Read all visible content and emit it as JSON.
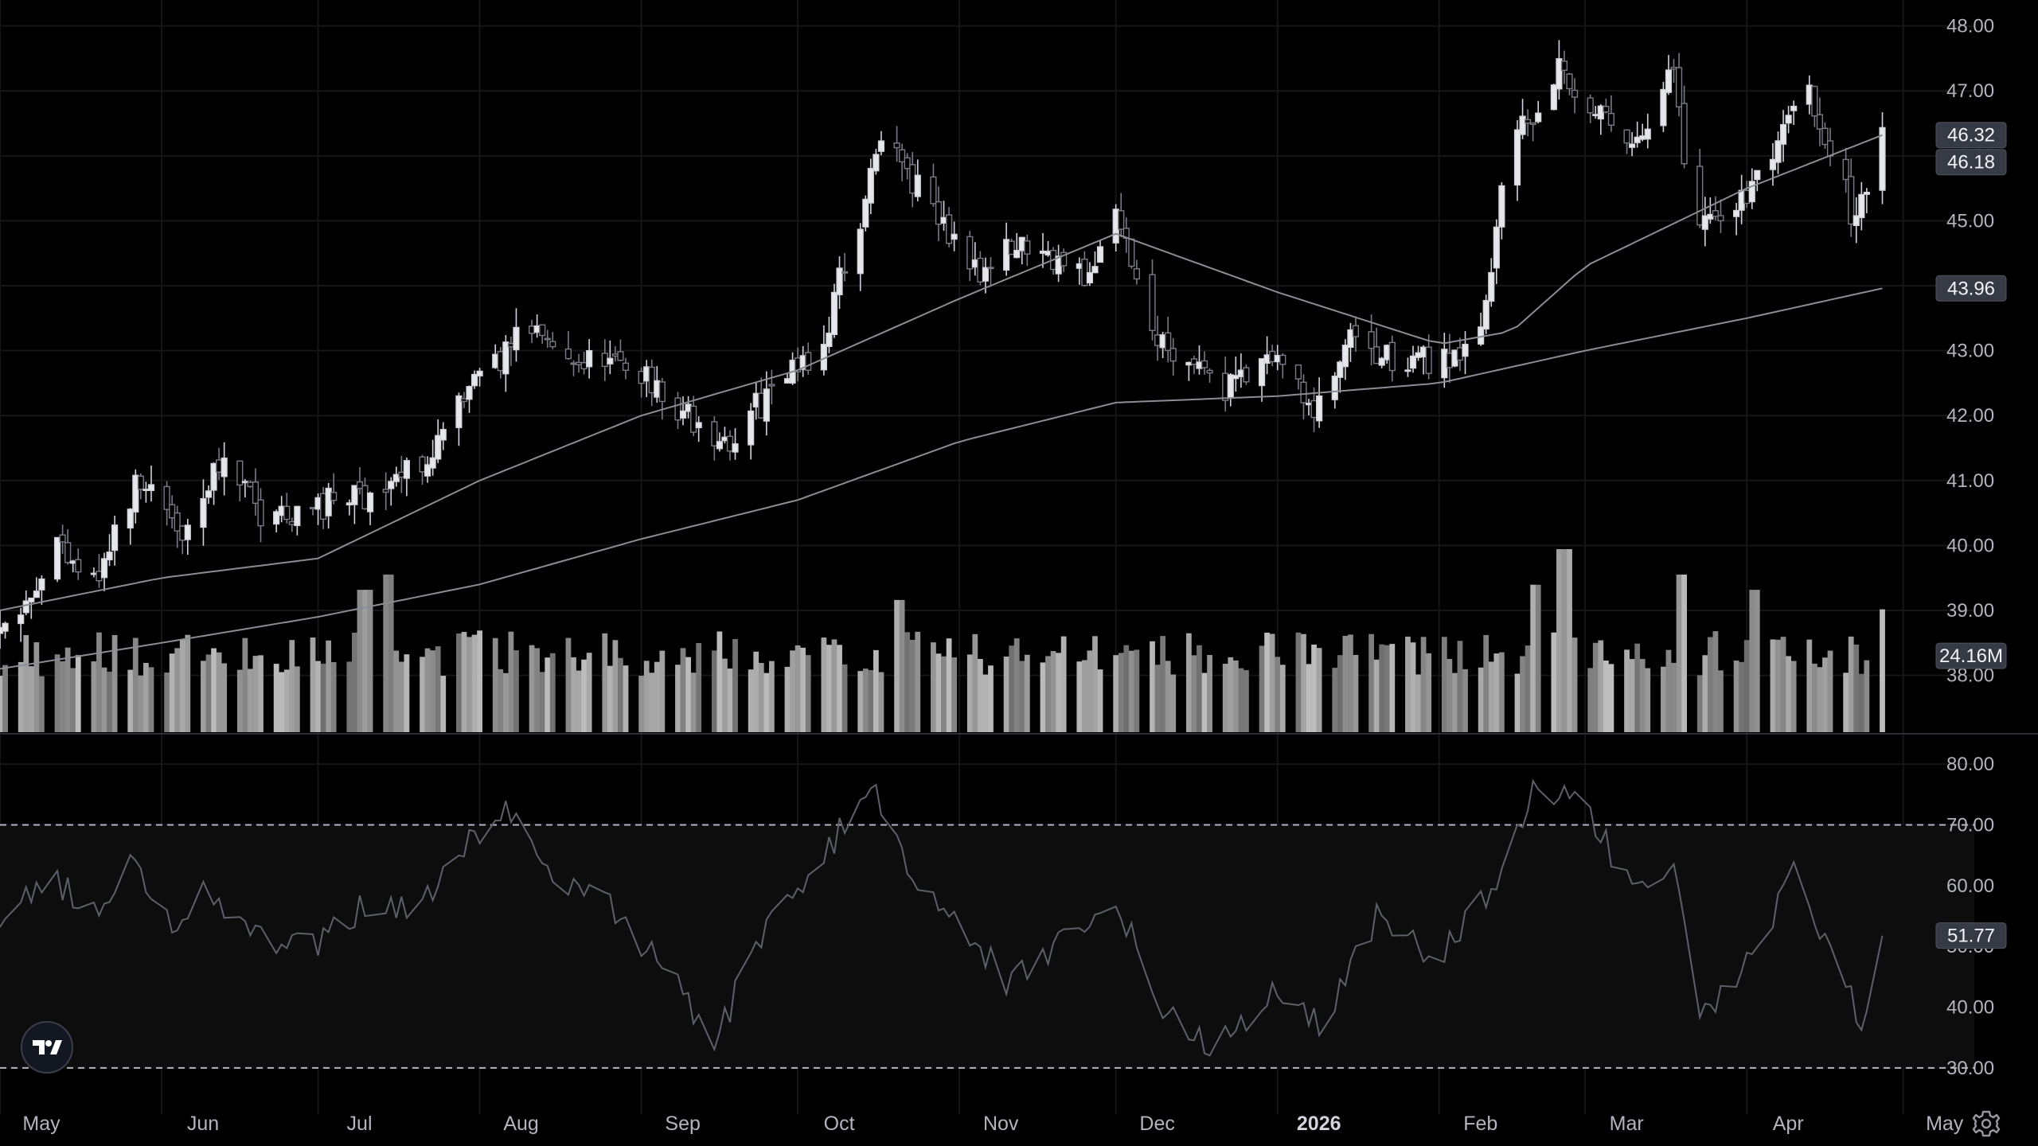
{
  "chart_data": {
    "type": "candlestick",
    "x_axis": {
      "tick_labels": [
        "May",
        "Jun",
        "Jul",
        "Aug",
        "Sep",
        "Oct",
        "Nov",
        "Dec",
        "2026",
        "Feb",
        "Mar",
        "Apr",
        "May"
      ],
      "bold_labels": [
        "2026"
      ],
      "range": [
        "2025-05-01",
        "2026-05-07"
      ]
    },
    "price_axis": {
      "tick_labels": [
        "48.00",
        "47.00",
        "46.00",
        "45.00",
        "44.00",
        "43.00",
        "42.00",
        "41.00",
        "40.00",
        "39.00",
        "38.00"
      ],
      "range": [
        37.1,
        48.4
      ]
    },
    "price_series": {
      "keyframes": [
        [
          "2025-05-01",
          38.7
        ],
        [
          "2025-05-12",
          40.0
        ],
        [
          "2025-05-20",
          39.6
        ],
        [
          "2025-05-28",
          41.1
        ],
        [
          "2025-06-05",
          40.2
        ],
        [
          "2025-06-12",
          41.3
        ],
        [
          "2025-06-20",
          40.5
        ],
        [
          "2025-07-01",
          40.6
        ],
        [
          "2025-07-10",
          40.8
        ],
        [
          "2025-07-20",
          41.2
        ],
        [
          "2025-08-01",
          42.5
        ],
        [
          "2025-08-10",
          43.3
        ],
        [
          "2025-08-20",
          42.9
        ],
        [
          "2025-09-01",
          42.7
        ],
        [
          "2025-09-10",
          42.0
        ],
        [
          "2025-09-15",
          41.4
        ],
        [
          "2025-09-25",
          42.3
        ],
        [
          "2025-10-05",
          43.0
        ],
        [
          "2025-10-12",
          44.8
        ],
        [
          "2025-10-18",
          46.4
        ],
        [
          "2025-10-26",
          45.2
        ],
        [
          "2025-11-05",
          44.3
        ],
        [
          "2025-11-15",
          44.7
        ],
        [
          "2025-11-25",
          44.1
        ],
        [
          "2025-12-01",
          45.1
        ],
        [
          "2025-12-08",
          43.3
        ],
        [
          "2025-12-15",
          42.9
        ],
        [
          "2025-12-22",
          42.4
        ],
        [
          "2026-01-01",
          42.9
        ],
        [
          "2026-01-08",
          42.0
        ],
        [
          "2026-01-15",
          43.1
        ],
        [
          "2026-01-23",
          42.8
        ],
        [
          "2026-02-01",
          42.9
        ],
        [
          "2026-02-08",
          43.1
        ],
        [
          "2026-02-15",
          46.2
        ],
        [
          "2026-02-24",
          47.4
        ],
        [
          "2026-03-05",
          46.5
        ],
        [
          "2026-03-12",
          46.1
        ],
        [
          "2026-03-18",
          47.3
        ],
        [
          "2026-03-22",
          44.8
        ],
        [
          "2026-04-01",
          45.4
        ],
        [
          "2026-04-08",
          46.3
        ],
        [
          "2026-04-12",
          47.2
        ],
        [
          "2026-04-17",
          46.0
        ],
        [
          "2026-04-22",
          45.0
        ],
        [
          "2026-04-27",
          46.2
        ]
      ]
    },
    "moving_average_50": {
      "keyframes": [
        [
          "2025-05-01",
          39.0
        ],
        [
          "2025-06-01",
          39.5
        ],
        [
          "2025-07-01",
          39.8
        ],
        [
          "2025-08-01",
          41.0
        ],
        [
          "2025-09-01",
          42.0
        ],
        [
          "2025-10-01",
          42.7
        ],
        [
          "2025-11-01",
          43.8
        ],
        [
          "2025-12-01",
          44.8
        ],
        [
          "2026-01-01",
          43.9
        ],
        [
          "2026-02-01",
          43.1
        ],
        [
          "2026-02-15",
          43.3
        ],
        [
          "2026-03-01",
          44.3
        ],
        [
          "2026-04-01",
          45.5
        ],
        [
          "2026-04-27",
          46.32
        ]
      ]
    },
    "moving_average_200": {
      "keyframes": [
        [
          "2025-05-01",
          38.1
        ],
        [
          "2025-06-01",
          38.5
        ],
        [
          "2025-07-01",
          38.9
        ],
        [
          "2025-08-01",
          39.4
        ],
        [
          "2025-09-01",
          40.1
        ],
        [
          "2025-10-01",
          40.7
        ],
        [
          "2025-11-01",
          41.6
        ],
        [
          "2025-12-01",
          42.2
        ],
        [
          "2026-01-01",
          42.3
        ],
        [
          "2026-02-01",
          42.5
        ],
        [
          "2026-03-01",
          43.0
        ],
        [
          "2026-04-01",
          43.5
        ],
        [
          "2026-04-27",
          43.96
        ]
      ]
    },
    "volume": {
      "unit": "M",
      "last_value": 24.16,
      "display_max": 36,
      "spikes": [
        [
          "2025-07-10",
          28
        ],
        [
          "2025-07-14",
          31
        ],
        [
          "2025-10-20",
          26
        ],
        [
          "2026-02-20",
          29
        ],
        [
          "2026-02-25",
          36
        ],
        [
          "2026-03-20",
          31
        ],
        [
          "2026-04-03",
          28
        ]
      ]
    },
    "rsi": {
      "axis_tick_labels": [
        "80.00",
        "70.00",
        "60.00",
        "50.00",
        "40.00",
        "30.00"
      ],
      "range": [
        25,
        85
      ],
      "overbought": 70,
      "oversold": 30,
      "last_value": 51.77,
      "keyframes": [
        [
          "2025-05-01",
          54
        ],
        [
          "2025-05-10",
          62
        ],
        [
          "2025-05-20",
          54
        ],
        [
          "2025-05-26",
          67
        ],
        [
          "2025-06-01",
          53
        ],
        [
          "2025-06-10",
          59
        ],
        [
          "2025-06-20",
          51
        ],
        [
          "2025-07-01",
          50
        ],
        [
          "2025-07-10",
          57
        ],
        [
          "2025-07-20",
          56
        ],
        [
          "2025-08-01",
          69
        ],
        [
          "2025-08-08",
          73
        ],
        [
          "2025-08-15",
          60
        ],
        [
          "2025-08-25",
          57
        ],
        [
          "2025-09-05",
          47
        ],
        [
          "2025-09-15",
          34
        ],
        [
          "2025-09-25",
          54
        ],
        [
          "2025-10-05",
          63
        ],
        [
          "2025-10-15",
          78
        ],
        [
          "2025-10-22",
          63
        ],
        [
          "2025-11-01",
          54
        ],
        [
          "2025-11-10",
          44
        ],
        [
          "2025-11-20",
          50
        ],
        [
          "2025-12-01",
          58
        ],
        [
          "2025-12-10",
          40
        ],
        [
          "2025-12-20",
          33
        ],
        [
          "2026-01-01",
          43
        ],
        [
          "2026-01-10",
          37
        ],
        [
          "2026-01-20",
          55
        ],
        [
          "2026-02-01",
          48
        ],
        [
          "2026-02-10",
          58
        ],
        [
          "2026-02-20",
          77
        ],
        [
          "2026-03-01",
          73
        ],
        [
          "2026-03-10",
          59
        ],
        [
          "2026-03-18",
          63
        ],
        [
          "2026-03-23",
          38
        ],
        [
          "2026-04-01",
          47
        ],
        [
          "2026-04-10",
          62
        ],
        [
          "2026-04-17",
          48
        ],
        [
          "2026-04-23",
          38
        ],
        [
          "2026-04-27",
          51.77
        ]
      ]
    },
    "price_tags": [
      {
        "label": "46.32",
        "value": 46.32,
        "series": "moving_average_50"
      },
      {
        "label": "46.18",
        "value": 46.18,
        "series": "last_price"
      },
      {
        "label": "43.96",
        "value": 43.96,
        "series": "moving_average_200"
      }
    ],
    "volume_tag": {
      "label": "24.16M"
    },
    "rsi_tag": {
      "label": "51.77"
    },
    "grid": true,
    "last_date": "2026-04-27"
  },
  "ui": {
    "logo_icon": "tradingview-logo-icon",
    "settings_icon": "gear-icon"
  }
}
